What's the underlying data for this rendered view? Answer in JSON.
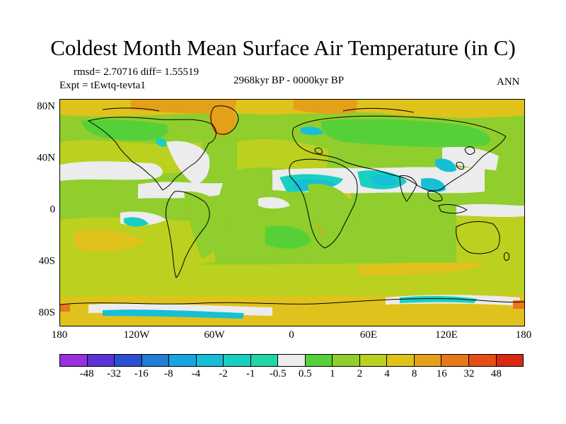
{
  "title": "Coldest Month Mean Surface Air Temperature (in C)",
  "stats_line": "rmsd= 2.70716 diff= 1.55519",
  "experiment": "Expt = tEwtq-tevta1",
  "period": "2968kyr BP - 0000kyr BP",
  "season": "ANN",
  "x_ticks": [
    "180",
    "120W",
    "60W",
    "0",
    "60E",
    "120E",
    "180"
  ],
  "y_ticks": [
    "80N",
    "40N",
    "0",
    "40S",
    "80S"
  ],
  "colorbar": {
    "labels": [
      "-48",
      "-32",
      "-16",
      "-8",
      "-4",
      "-2",
      "-1",
      "-0.5",
      "0.5",
      "1",
      "2",
      "4",
      "8",
      "16",
      "32",
      "48"
    ],
    "colors": [
      "#9a2fe0",
      "#5b32d8",
      "#2a4fd0",
      "#1f7ed6",
      "#18a5e0",
      "#16bfd6",
      "#18d0c2",
      "#22d6a6",
      "#ececec",
      "#56d038",
      "#8fce2c",
      "#bcd01f",
      "#e0c21c",
      "#e4a019",
      "#e8781a",
      "#e64e16",
      "#d82a10"
    ]
  },
  "map_colors": {
    "background": "#8fce2c",
    "land_outline": "#000000"
  }
}
